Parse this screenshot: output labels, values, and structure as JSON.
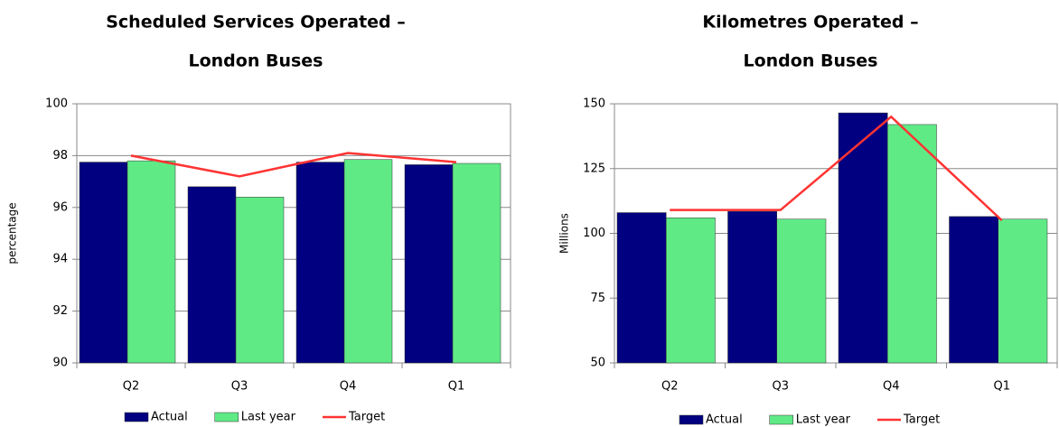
{
  "chart_data": [
    {
      "type": "bar",
      "title": [
        "Scheduled Services Operated –",
        "London Buses"
      ],
      "y_label": "percentage",
      "categories": [
        "Q2",
        "Q3",
        "Q4",
        "Q1"
      ],
      "series": [
        {
          "name": "Actual",
          "color": "#000080",
          "values": [
            97.75,
            96.8,
            97.75,
            97.65
          ]
        },
        {
          "name": "Last year",
          "color": "#5fea86",
          "values": [
            97.8,
            96.4,
            97.85,
            97.7
          ]
        },
        {
          "name": "Target",
          "color": "#ff3333",
          "type": "line",
          "values": [
            98.0,
            97.2,
            98.1,
            97.75
          ]
        }
      ],
      "ylim": [
        90,
        100
      ],
      "yticks": [
        90,
        92,
        94,
        96,
        98,
        100
      ],
      "grid": true
    },
    {
      "type": "bar",
      "title": [
        "Kilometres Operated –",
        "London Buses"
      ],
      "y_label": "Millions",
      "categories": [
        "Q2",
        "Q3",
        "Q4",
        "Q1"
      ],
      "series": [
        {
          "name": "Actual",
          "color": "#000080",
          "values": [
            108,
            108.5,
            146.5,
            106.5
          ]
        },
        {
          "name": "Last year",
          "color": "#5fea86",
          "values": [
            106,
            105.5,
            142,
            105.5
          ]
        },
        {
          "name": "Target",
          "color": "#ff3333",
          "type": "line",
          "values": [
            109,
            109,
            145,
            105
          ]
        }
      ],
      "ylim": [
        50,
        150
      ],
      "yticks": [
        50,
        75,
        100,
        125,
        150
      ],
      "grid": true
    }
  ]
}
